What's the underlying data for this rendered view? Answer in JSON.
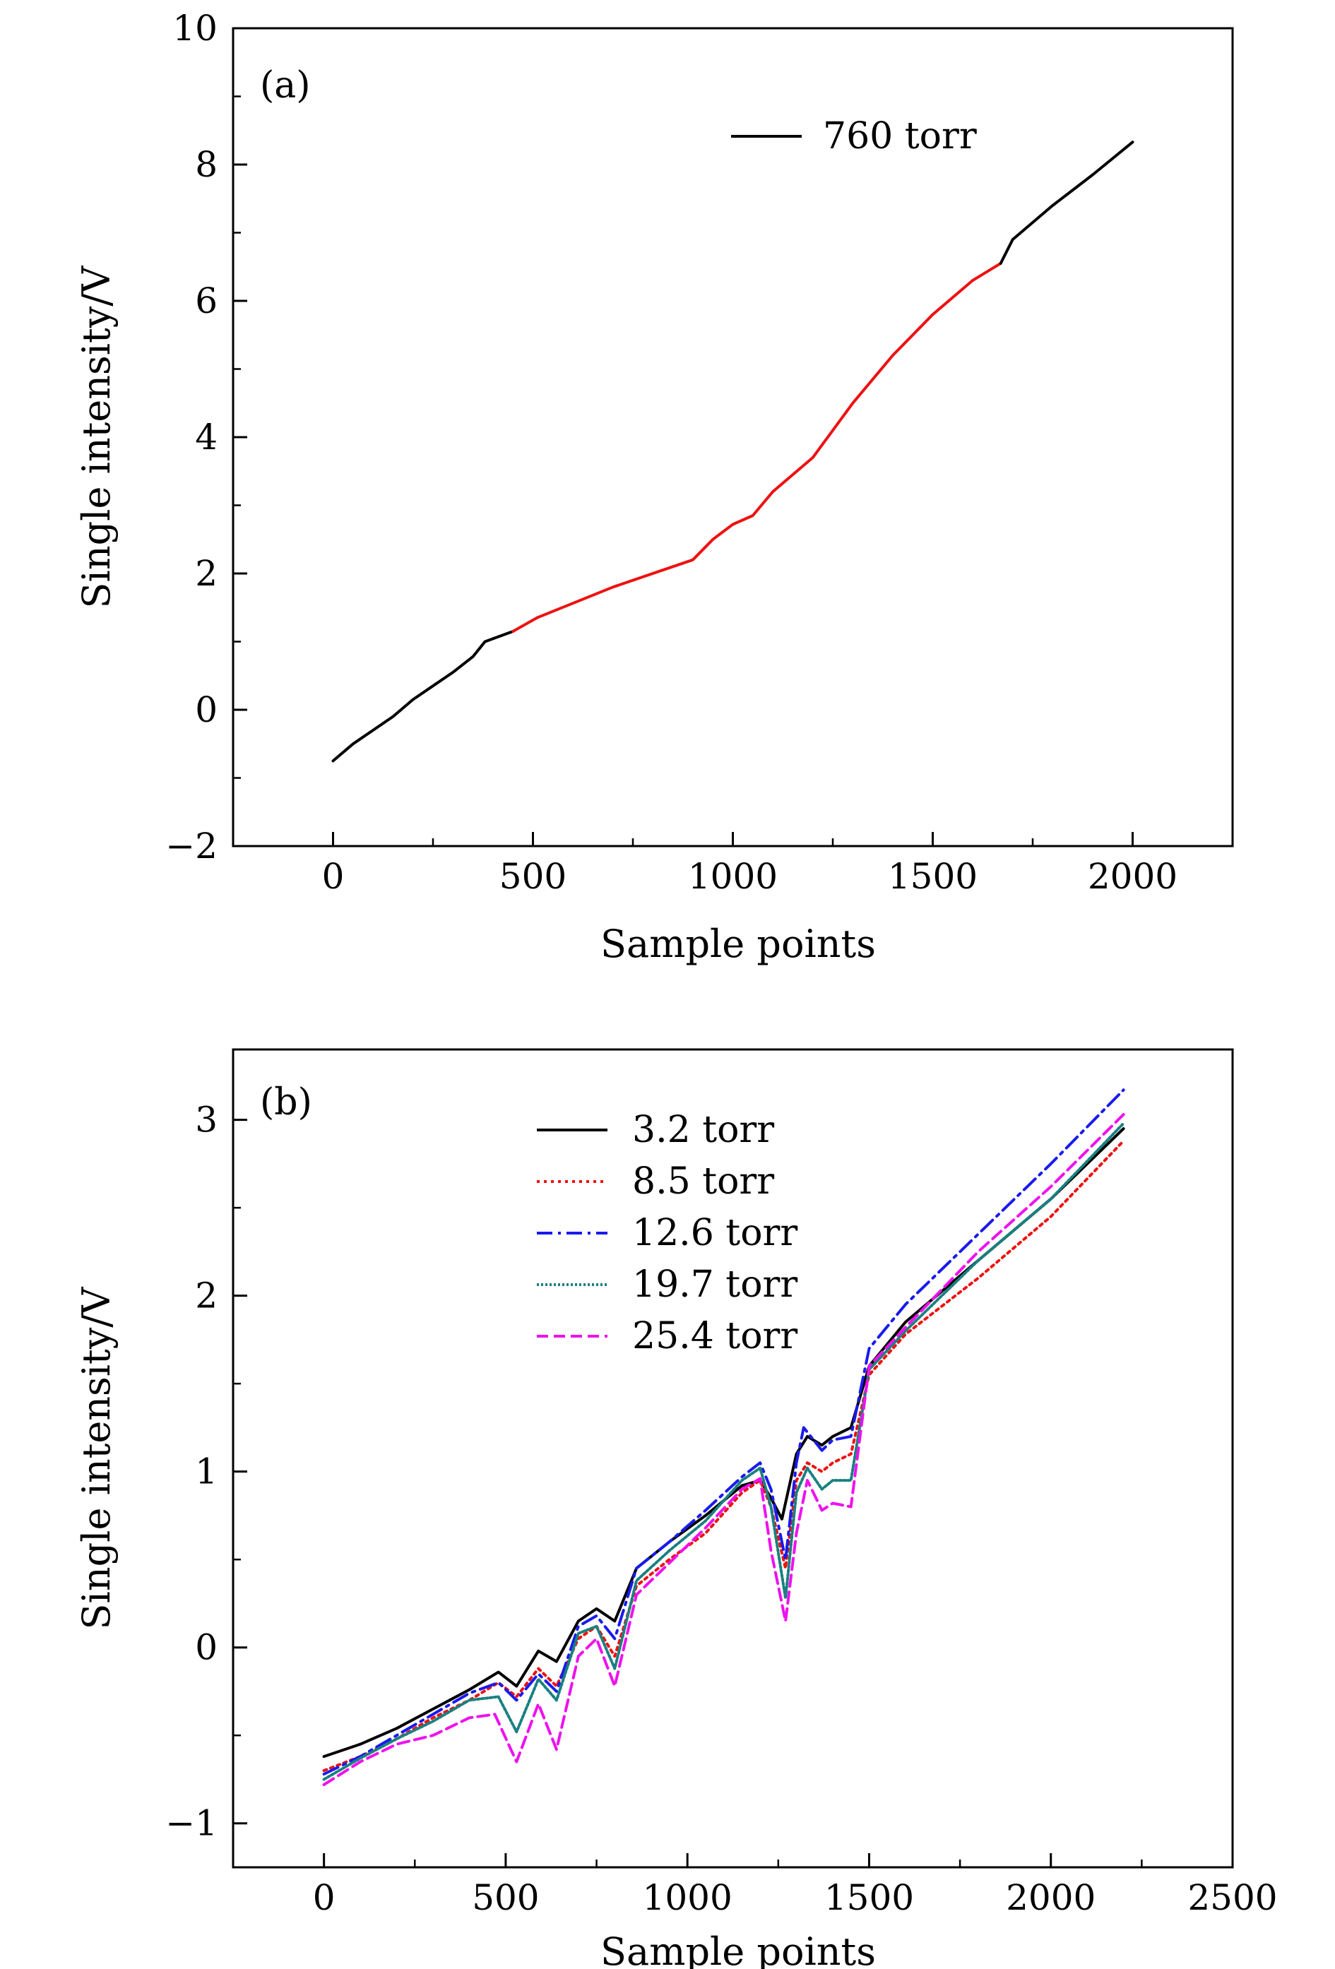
{
  "chart_data": [
    {
      "panel_label": "(a)",
      "type": "line",
      "xlabel": "Sample points",
      "ylabel": "Single intensity/V",
      "xlim": [
        -250,
        2250
      ],
      "ylim": [
        -2,
        10
      ],
      "xticks": [
        0,
        500,
        1000,
        1500,
        2000
      ],
      "yticks": [
        -2,
        0,
        2,
        4,
        6,
        8,
        10
      ],
      "x_tick_labels": [
        "0",
        "500",
        "1000",
        "1500",
        "2000"
      ],
      "y_tick_labels": [
        "−2",
        "0",
        "2",
        "4",
        "6",
        "8",
        "10"
      ],
      "legend": {
        "position": "top-right",
        "entries": [
          "760 torr"
        ]
      },
      "series": [
        {
          "name": "760 torr",
          "color": "#000000",
          "style": "solid",
          "x": [
            0,
            50,
            100,
            150,
            200,
            250,
            300,
            350,
            380,
            450
          ],
          "y": [
            -0.75,
            -0.5,
            -0.3,
            -0.1,
            0.15,
            0.35,
            0.55,
            0.78,
            1.0,
            1.15
          ]
        },
        {
          "name": "760 torr (highlighted segment)",
          "color": "#ee1111",
          "style": "solid",
          "x": [
            450,
            510,
            700,
            900,
            950,
            1000,
            1050,
            1100,
            1200,
            1300,
            1400,
            1500,
            1600,
            1670
          ],
          "y": [
            1.15,
            1.35,
            1.8,
            2.2,
            2.5,
            2.72,
            2.85,
            3.2,
            3.7,
            4.5,
            5.2,
            5.8,
            6.3,
            6.55
          ]
        },
        {
          "name": "760 torr (end)",
          "color": "#000000",
          "style": "solid",
          "x": [
            1670,
            1700,
            1800,
            1900,
            2000
          ],
          "y": [
            6.55,
            6.9,
            7.4,
            7.85,
            8.33
          ]
        }
      ]
    },
    {
      "panel_label": "(b)",
      "type": "line",
      "xlabel": "Sample points",
      "ylabel": "Single intensity/V",
      "xlim": [
        -250,
        2500
      ],
      "ylim": [
        -1.25,
        3.4
      ],
      "xticks": [
        0,
        500,
        1000,
        1500,
        2000,
        2500
      ],
      "yticks": [
        -1,
        0,
        1,
        2,
        3
      ],
      "x_tick_labels": [
        "0",
        "500",
        "1000",
        "1500",
        "2000",
        "2500"
      ],
      "y_tick_labels": [
        "−1",
        "0",
        "1",
        "2",
        "3"
      ],
      "legend": {
        "position": "top-center",
        "entries": [
          "3.2 torr",
          "8.5 torr",
          "12.6 torr",
          "19.7 torr",
          "25.4 torr"
        ]
      },
      "series": [
        {
          "name": "3.2 torr",
          "color": "#000000",
          "style": "solid",
          "x": [
            0,
            100,
            200,
            300,
            400,
            480,
            530,
            590,
            640,
            700,
            750,
            800,
            860,
            950,
            1050,
            1150,
            1200,
            1230,
            1260,
            1300,
            1330,
            1370,
            1400,
            1450,
            1500,
            1600,
            1800,
            2000,
            2200
          ],
          "y": [
            -0.62,
            -0.55,
            -0.46,
            -0.35,
            -0.24,
            -0.14,
            -0.22,
            -0.02,
            -0.08,
            0.15,
            0.22,
            0.15,
            0.45,
            0.6,
            0.75,
            0.92,
            0.95,
            0.85,
            0.73,
            1.1,
            1.2,
            1.15,
            1.2,
            1.25,
            1.6,
            1.85,
            2.2,
            2.55,
            2.95
          ]
        },
        {
          "name": "8.5 torr",
          "color": "#ee1111",
          "style": "dotted",
          "x": [
            0,
            100,
            200,
            300,
            400,
            480,
            530,
            590,
            640,
            700,
            750,
            800,
            860,
            950,
            1050,
            1150,
            1200,
            1230,
            1270,
            1300,
            1330,
            1370,
            1400,
            1450,
            1500,
            1600,
            1800,
            2000,
            2200
          ],
          "y": [
            -0.7,
            -0.62,
            -0.52,
            -0.4,
            -0.3,
            -0.2,
            -0.28,
            -0.12,
            -0.22,
            0.05,
            0.12,
            -0.05,
            0.35,
            0.5,
            0.65,
            0.88,
            0.95,
            0.8,
            0.45,
            0.95,
            1.05,
            1.0,
            1.05,
            1.1,
            1.55,
            1.78,
            2.1,
            2.45,
            2.88
          ]
        },
        {
          "name": "12.6 torr",
          "color": "#1a1aee",
          "style": "dashdot",
          "x": [
            0,
            100,
            200,
            300,
            400,
            480,
            530,
            590,
            640,
            700,
            750,
            800,
            860,
            950,
            1050,
            1150,
            1200,
            1230,
            1270,
            1300,
            1320,
            1370,
            1400,
            1450,
            1500,
            1600,
            1800,
            2000,
            2200
          ],
          "y": [
            -0.72,
            -0.62,
            -0.5,
            -0.38,
            -0.26,
            -0.2,
            -0.3,
            -0.15,
            -0.25,
            0.12,
            0.18,
            0.05,
            0.45,
            0.6,
            0.78,
            0.97,
            1.05,
            0.9,
            0.5,
            1.05,
            1.25,
            1.12,
            1.18,
            1.2,
            1.7,
            1.95,
            2.35,
            2.75,
            3.17
          ]
        },
        {
          "name": "19.7 torr",
          "color": "#1a8080",
          "style": "dotted-dense",
          "x": [
            0,
            100,
            200,
            300,
            400,
            480,
            530,
            590,
            640,
            700,
            750,
            800,
            860,
            950,
            1050,
            1150,
            1200,
            1230,
            1270,
            1300,
            1330,
            1370,
            1400,
            1450,
            1500,
            1600,
            1800,
            2000,
            2200
          ],
          "y": [
            -0.75,
            -0.63,
            -0.52,
            -0.42,
            -0.3,
            -0.28,
            -0.48,
            -0.18,
            -0.3,
            0.08,
            0.12,
            -0.12,
            0.38,
            0.55,
            0.72,
            0.95,
            1.02,
            0.8,
            0.28,
            0.88,
            1.02,
            0.9,
            0.95,
            0.95,
            1.58,
            1.8,
            2.2,
            2.55,
            2.98
          ]
        },
        {
          "name": "25.4 torr",
          "color": "#ee11ee",
          "style": "dashed",
          "x": [
            0,
            100,
            200,
            300,
            400,
            470,
            530,
            590,
            640,
            700,
            750,
            800,
            860,
            950,
            1050,
            1150,
            1200,
            1230,
            1270,
            1300,
            1330,
            1370,
            1400,
            1450,
            1500,
            1600,
            1800,
            2000,
            2200
          ],
          "y": [
            -0.78,
            -0.65,
            -0.55,
            -0.5,
            -0.4,
            -0.38,
            -0.65,
            -0.32,
            -0.58,
            -0.05,
            0.05,
            -0.22,
            0.3,
            0.48,
            0.68,
            0.9,
            0.96,
            0.55,
            0.15,
            0.65,
            0.95,
            0.78,
            0.82,
            0.8,
            1.6,
            1.82,
            2.25,
            2.62,
            3.03
          ]
        }
      ]
    }
  ]
}
